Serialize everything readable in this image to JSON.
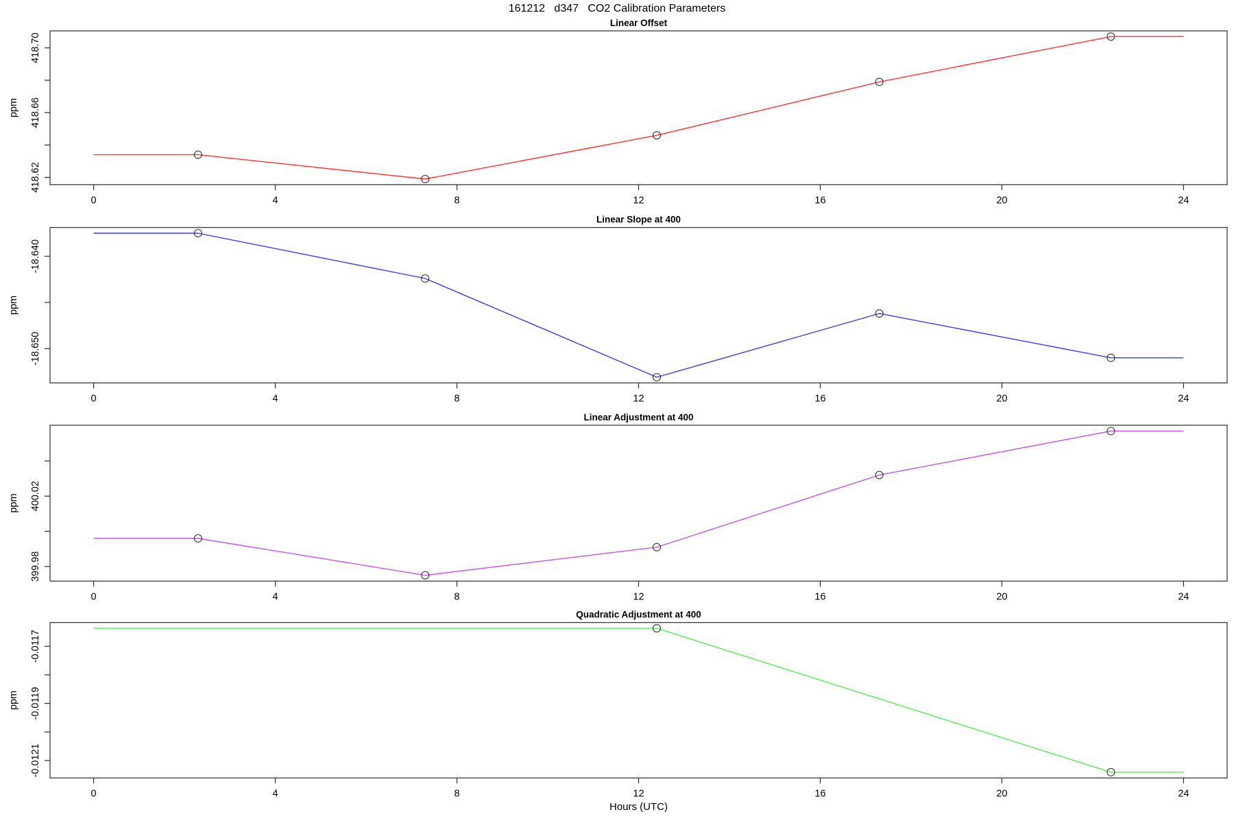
{
  "page_title": "161212   d347   CO2 Calibration Parameters",
  "xlabel": "Hours (UTC)",
  "marker_color": "#333333",
  "axis_color": "#2a2a2a",
  "chart_data": [
    {
      "type": "line",
      "title": "Linear Offset",
      "ylabel": "ppm",
      "line_color": "#ff3434",
      "x_line": [
        0,
        2.3,
        7.3,
        12.4,
        17.3,
        22.4,
        24
      ],
      "y_line": [
        418.634,
        418.634,
        418.619,
        418.646,
        418.679,
        418.707,
        418.707
      ],
      "x_points": [
        2.3,
        7.3,
        12.4,
        17.3,
        22.4
      ],
      "y_points": [
        418.634,
        418.619,
        418.646,
        418.679,
        418.707
      ],
      "xlim": [
        -0.96,
        24.96
      ],
      "ylim": [
        418.6155,
        418.7105
      ],
      "xticks": [
        0,
        4,
        8,
        12,
        16,
        20,
        24
      ],
      "yticks": [
        {
          "v": 418.62,
          "label": "418.62"
        },
        {
          "v": 418.64,
          "label": ""
        },
        {
          "v": 418.66,
          "label": "418.66"
        },
        {
          "v": 418.68,
          "label": ""
        },
        {
          "v": 418.7,
          "label": "418.70"
        }
      ]
    },
    {
      "type": "line",
      "title": "Linear Slope at 400",
      "ylabel": "ppm",
      "line_color": "#3b3bee",
      "x_line": [
        0,
        2.3,
        7.3,
        12.4,
        17.3,
        22.4,
        24
      ],
      "y_line": [
        -18.6375,
        -18.6375,
        -18.6424,
        -18.6531,
        -18.6462,
        -18.651,
        -18.651
      ],
      "x_points": [
        2.3,
        7.3,
        12.4,
        17.3,
        22.4
      ],
      "y_points": [
        -18.6375,
        -18.6424,
        -18.6531,
        -18.6462,
        -18.651
      ],
      "xlim": [
        -0.96,
        24.96
      ],
      "ylim": [
        -18.65372,
        -18.63688
      ],
      "xticks": [
        0,
        4,
        8,
        12,
        16,
        20,
        24
      ],
      "yticks": [
        {
          "v": -18.65,
          "label": "-18.650"
        },
        {
          "v": -18.645,
          "label": ""
        },
        {
          "v": -18.64,
          "label": "-18.640"
        }
      ]
    },
    {
      "type": "line",
      "title": "Linear Adjustment at 400",
      "ylabel": "ppm",
      "line_color": "#bf57e0",
      "x_line": [
        0,
        2.3,
        7.3,
        12.4,
        17.3,
        22.4,
        24
      ],
      "y_line": [
        399.996,
        399.996,
        399.975,
        399.991,
        400.032,
        400.057,
        400.057
      ],
      "x_points": [
        2.3,
        7.3,
        12.4,
        17.3,
        22.4
      ],
      "y_points": [
        399.996,
        399.975,
        399.991,
        400.032,
        400.057
      ],
      "xlim": [
        -0.96,
        24.96
      ],
      "ylim": [
        399.9717,
        400.0603
      ],
      "xticks": [
        0,
        4,
        8,
        12,
        16,
        20,
        24
      ],
      "yticks": [
        {
          "v": 399.98,
          "label": "399.98"
        },
        {
          "v": 400.0,
          "label": ""
        },
        {
          "v": 400.02,
          "label": "400.02"
        },
        {
          "v": 400.04,
          "label": ""
        }
      ]
    },
    {
      "type": "line",
      "title": "Quadratic Adjustment at 400",
      "ylabel": "ppm",
      "line_color": "#52ee52",
      "x_line": [
        0,
        12.4,
        22.4,
        24
      ],
      "y_line": [
        -0.011637,
        -0.011637,
        -0.012141,
        -0.012141
      ],
      "x_points": [
        12.4,
        22.4
      ],
      "y_points": [
        -0.011637,
        -0.012141
      ],
      "xlim": [
        -0.96,
        24.96
      ],
      "ylim": [
        -0.0121612,
        -0.0116168
      ],
      "xticks": [
        0,
        4,
        8,
        12,
        16,
        20,
        24
      ],
      "yticks": [
        {
          "v": -0.0121,
          "label": "-0.0121"
        },
        {
          "v": -0.012,
          "label": ""
        },
        {
          "v": -0.0119,
          "label": "-0.0119"
        },
        {
          "v": -0.0118,
          "label": ""
        },
        {
          "v": -0.0117,
          "label": "-0.0117"
        }
      ]
    }
  ]
}
